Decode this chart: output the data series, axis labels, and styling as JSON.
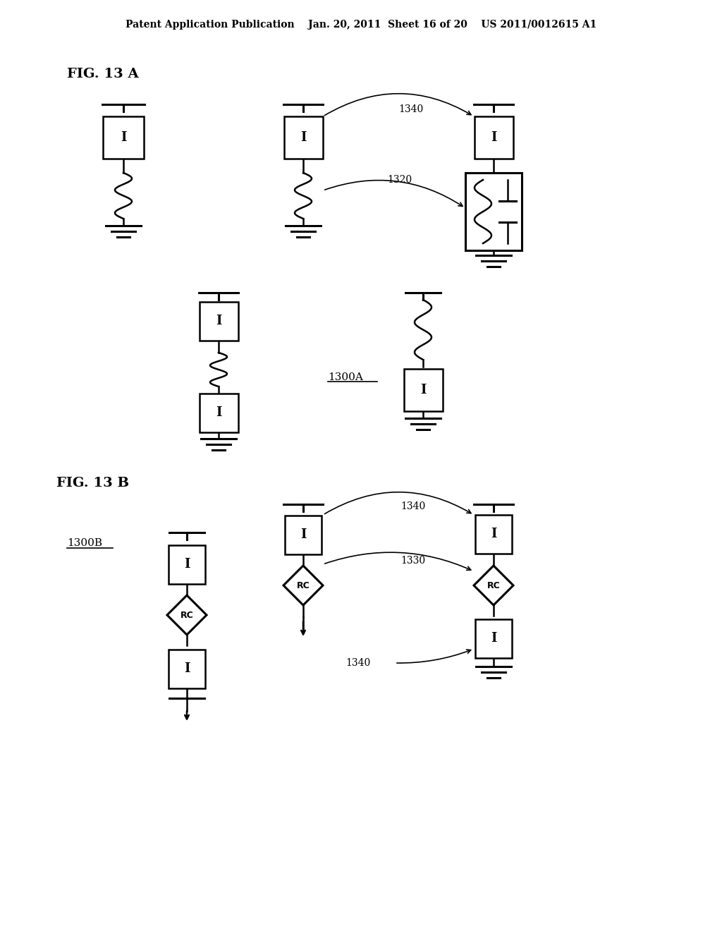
{
  "title_text": "Patent Application Publication    Jan. 20, 2011  Sheet 16 of 20    US 2011/0012615 A1",
  "fig13a_label": "FIG. 13 A",
  "fig13b_label": "FIG. 13 B",
  "label_1300a": "1300A",
  "label_1300b": "1300B",
  "label_1340_1": "1340",
  "label_1320": "1320",
  "label_1340_2": "1340",
  "label_1330": "1330",
  "bg_color": "#ffffff",
  "line_color": "#000000"
}
